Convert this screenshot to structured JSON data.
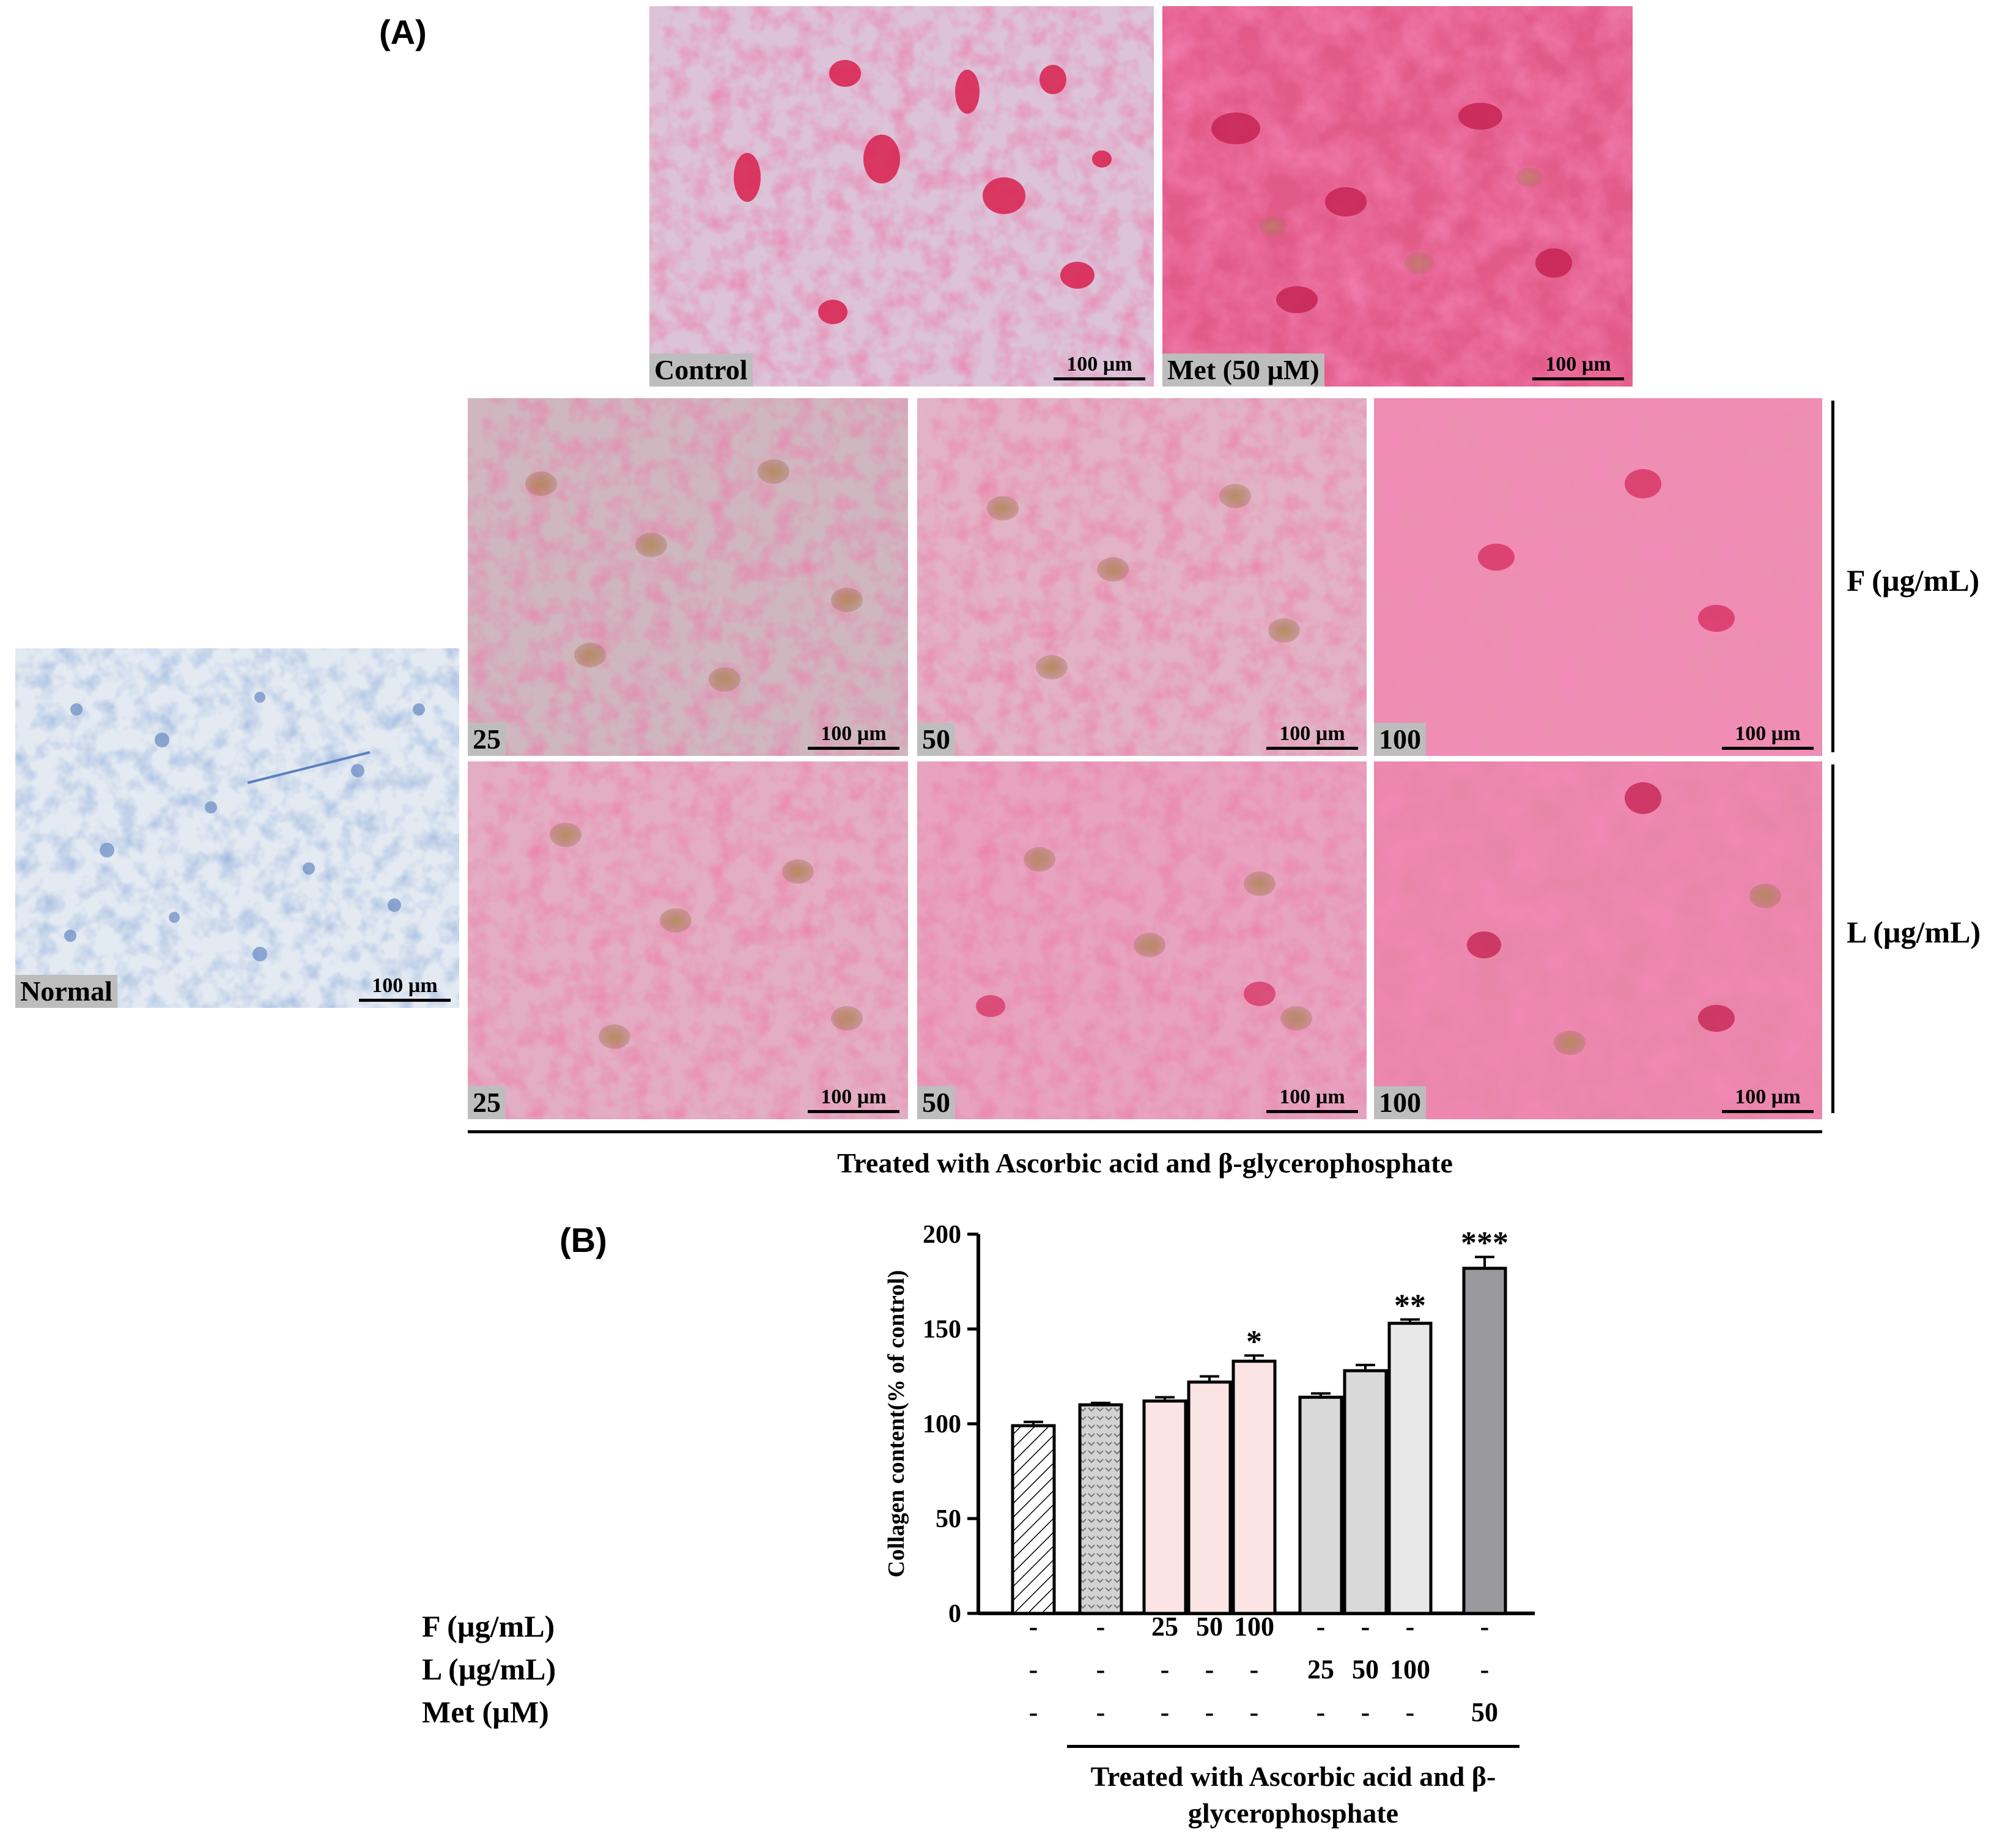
{
  "panel_a": {
    "letter": "(A)",
    "normal": {
      "label": "Normal",
      "scale": "100 µm"
    },
    "control": {
      "label": "Control",
      "scale": "100 µm"
    },
    "met": {
      "label": "Met (50 µM)",
      "scale": "100 µm"
    },
    "f_row": {
      "side_label": "F (µg/mL)",
      "images": [
        {
          "label": "25",
          "scale": "100 µm"
        },
        {
          "label": "50",
          "scale": "100 µm"
        },
        {
          "label": "100",
          "scale": "100 µm"
        }
      ]
    },
    "l_row": {
      "side_label": "L (µg/mL)",
      "images": [
        {
          "label": "25",
          "scale": "100 µm"
        },
        {
          "label": "50",
          "scale": "100 µm"
        },
        {
          "label": "100",
          "scale": "100 µm"
        }
      ]
    },
    "caption": "Treated with Ascorbic acid and β-glycerophosphate"
  },
  "panel_b": {
    "letter": "(B)",
    "chart_data": {
      "type": "bar",
      "ylabel": "Collagen content(% of control)",
      "ylim": [
        0,
        200
      ],
      "yticks": [
        "0",
        "50",
        "100",
        "150",
        "200"
      ],
      "grid": false,
      "legend": "none",
      "bars": [
        {
          "value": 99,
          "error": 2,
          "fill": "hatch",
          "sig": ""
        },
        {
          "value": 110,
          "error": 1,
          "fill": "dots",
          "sig": ""
        },
        {
          "value": 112,
          "error": 2,
          "fill": "#fde4e4",
          "sig": ""
        },
        {
          "value": 122,
          "error": 3,
          "fill": "#fde4e4",
          "sig": ""
        },
        {
          "value": 133,
          "error": 3,
          "fill": "#fde4e4",
          "sig": "*"
        },
        {
          "value": 114,
          "error": 2,
          "fill": "#d9d9d9",
          "sig": ""
        },
        {
          "value": 128,
          "error": 3,
          "fill": "#d9d9d9",
          "sig": ""
        },
        {
          "value": 153,
          "error": 2,
          "fill": "#e8e8e8",
          "sig": "**"
        },
        {
          "value": 182,
          "error": 6,
          "fill": "#9a9a9e",
          "sig": "***"
        }
      ]
    },
    "table": {
      "rows": [
        {
          "label": "F (µg/mL)",
          "cells": [
            "-",
            "-",
            "25",
            "50",
            "100",
            "-",
            "-",
            "-",
            "-"
          ]
        },
        {
          "label": "L (µg/mL)",
          "cells": [
            "-",
            "-",
            "-",
            "-",
            "-",
            "25",
            "50",
            "100",
            "-"
          ]
        },
        {
          "label": "Met (µM)",
          "cells": [
            "-",
            "-",
            "-",
            "-",
            "-",
            "-",
            "-",
            "-",
            "50"
          ]
        }
      ]
    },
    "caption_line1": "Treated with Ascorbic acid and β-",
    "caption_line2": "glycerophosphate"
  }
}
